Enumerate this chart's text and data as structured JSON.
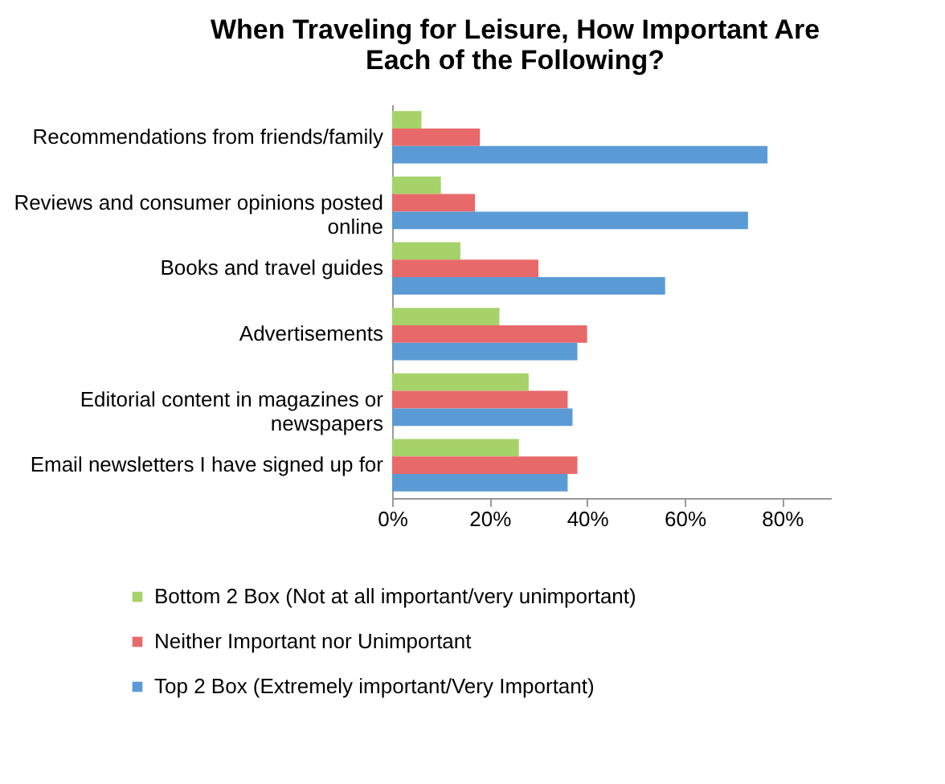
{
  "chart_data": {
    "type": "bar",
    "orientation": "horizontal",
    "title": "When Traveling for Leisure, How Important Are Each of the Following?",
    "categories": [
      "Recommendations from friends/family",
      "Reviews and consumer opinions posted online",
      "Books and travel guides",
      "Advertisements",
      "Editorial content in magazines or newspapers",
      "Email newsletters I have signed up for"
    ],
    "series": [
      {
        "name": "Bottom 2 Box (Not at all important/very unimportant)",
        "color": "#a6d26a",
        "values": [
          6,
          10,
          14,
          22,
          28,
          26
        ]
      },
      {
        "name": "Neither Important nor Unimportant",
        "color": "#e8696a",
        "values": [
          18,
          17,
          30,
          40,
          36,
          38
        ]
      },
      {
        "name": "Top 2 Box (Extremely important/Very Important)",
        "color": "#5b9bd5",
        "values": [
          77,
          73,
          56,
          38,
          37,
          36
        ]
      }
    ],
    "xlim": [
      0,
      90
    ],
    "xticks": [
      {
        "value": 0,
        "label": "0%"
      },
      {
        "value": 20,
        "label": "20%"
      },
      {
        "value": 40,
        "label": "40%"
      },
      {
        "value": 60,
        "label": "60%"
      },
      {
        "value": 80,
        "label": "80%"
      }
    ],
    "grid": false,
    "legend": "bottom"
  }
}
